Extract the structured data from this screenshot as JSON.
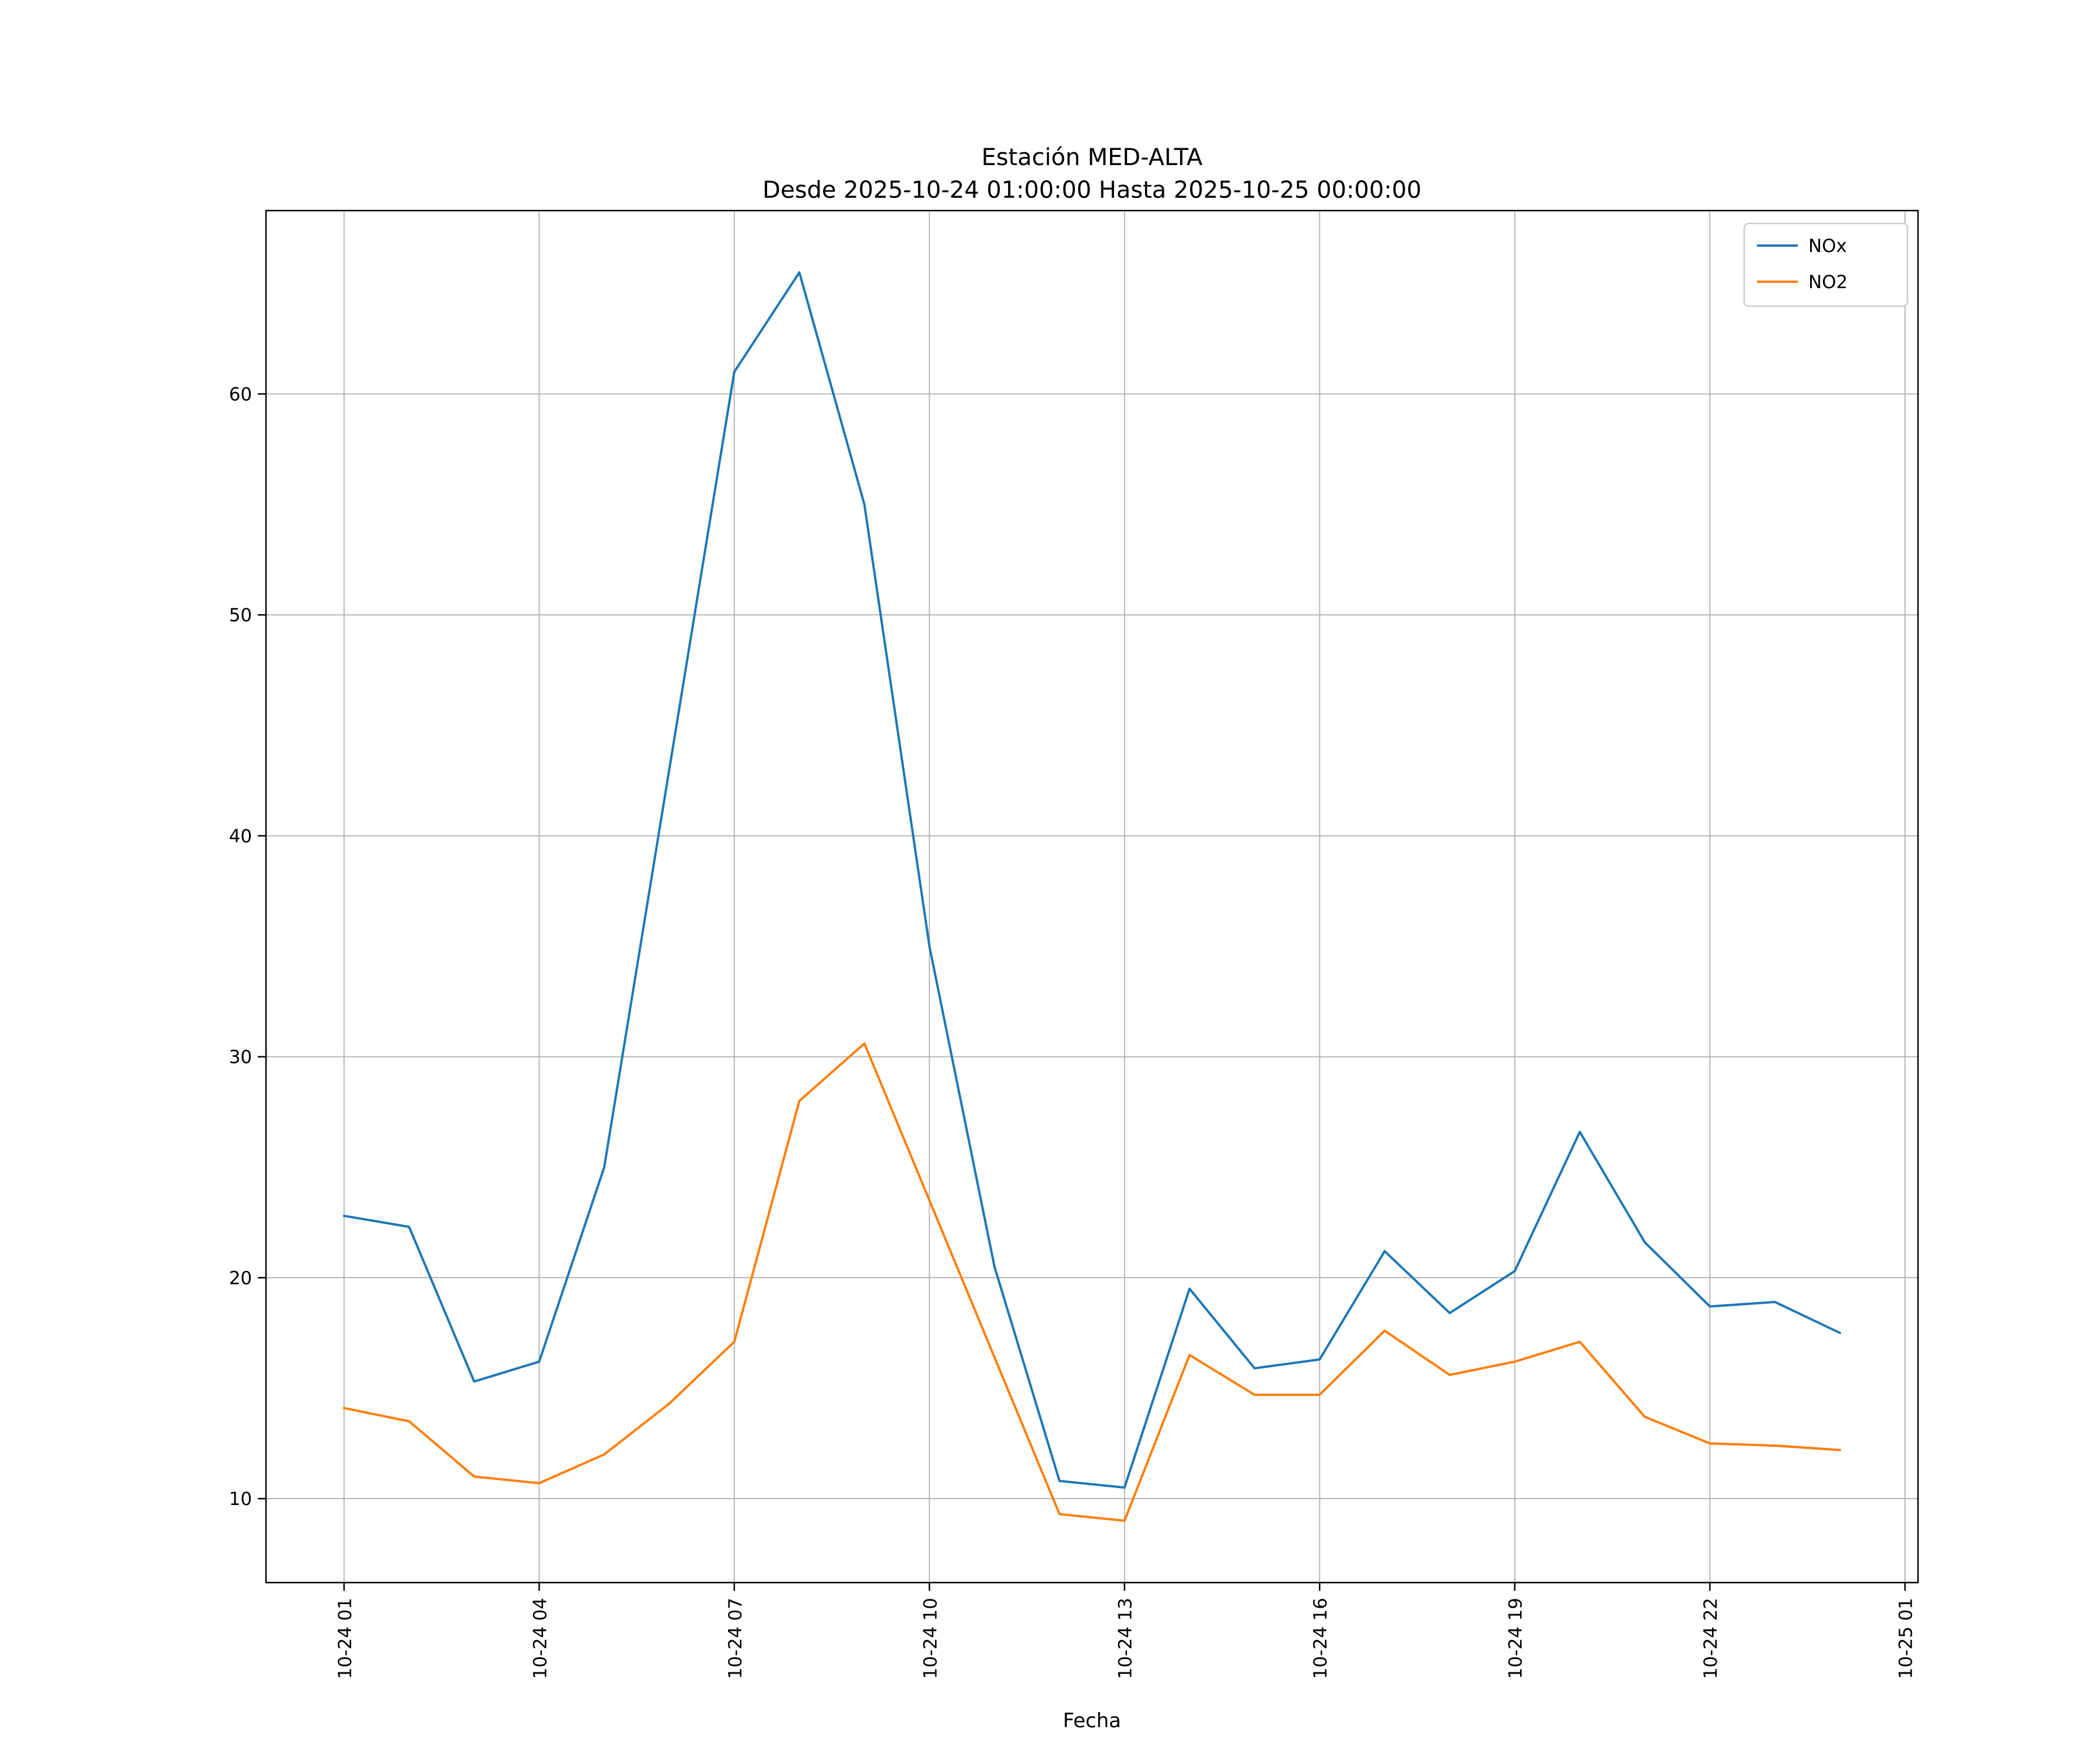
{
  "chart_data": {
    "type": "line",
    "title": "Estación MED-ALTA",
    "subtitle": "Desde 2025-10-24 01:00:00 Hasta 2025-10-25 00:00:00",
    "xlabel": "Fecha",
    "ylabel": "",
    "grid": true,
    "background": "#ffffff",
    "grid_color": "#b0b0b0",
    "axes_color": "#000000",
    "legend_position": "upper right",
    "xlim": [
      -0.2,
      25.2
    ],
    "ylim": [
      6.2,
      68.3
    ],
    "yticks": [
      10,
      20,
      30,
      40,
      50,
      60
    ],
    "xticks": [
      {
        "pos": 1,
        "label": "10-24 01"
      },
      {
        "pos": 4,
        "label": "10-24 04"
      },
      {
        "pos": 7,
        "label": "10-24 07"
      },
      {
        "pos": 10,
        "label": "10-24 10"
      },
      {
        "pos": 13,
        "label": "10-24 13"
      },
      {
        "pos": 16,
        "label": "10-24 16"
      },
      {
        "pos": 19,
        "label": "10-24 19"
      },
      {
        "pos": 22,
        "label": "10-24 22"
      },
      {
        "pos": 25,
        "label": "10-25 01"
      }
    ],
    "x_hours": [
      1,
      2,
      3,
      4,
      5,
      6,
      7,
      8,
      9,
      10,
      11,
      12,
      13,
      14,
      15,
      16,
      17,
      18,
      19,
      20,
      21,
      22,
      23,
      24
    ],
    "series": [
      {
        "name": "NOx",
        "color": "#1f77b4",
        "values": [
          22.8,
          22.3,
          15.3,
          16.2,
          25.0,
          43.0,
          61.0,
          65.5,
          55.0,
          35.0,
          20.5,
          10.8,
          10.5,
          19.5,
          15.9,
          16.3,
          21.2,
          18.4,
          20.3,
          26.6,
          21.6,
          18.7,
          18.9,
          17.5
        ]
      },
      {
        "name": "NO2",
        "color": "#ff7f0e",
        "values": [
          14.1,
          13.5,
          11.0,
          10.7,
          12.0,
          14.3,
          17.1,
          28.0,
          30.6,
          23.5,
          16.4,
          9.3,
          9.0,
          16.5,
          14.7,
          14.7,
          17.6,
          15.6,
          16.2,
          17.1,
          13.7,
          12.5,
          12.4,
          12.2
        ]
      }
    ]
  }
}
